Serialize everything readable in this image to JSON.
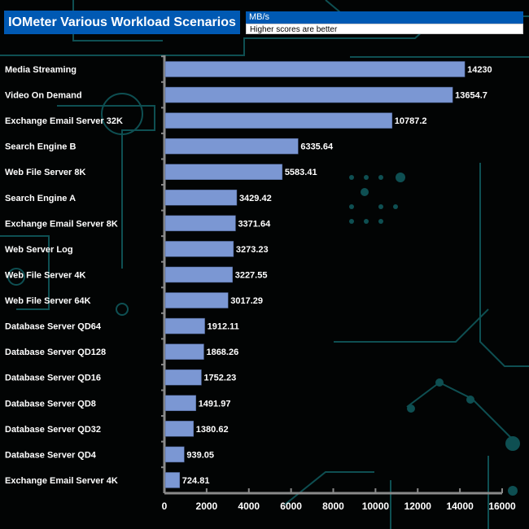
{
  "header": {
    "title": "IOMeter Various Workload Scenarios",
    "unit": "MB/s",
    "note": "Higher scores are better"
  },
  "colors": {
    "bar": "#7b97d3",
    "title_bg": "#0059b3",
    "axis": "#8a8a8a",
    "circuit": "#0e4f52"
  },
  "chart_data": {
    "type": "bar",
    "orientation": "horizontal",
    "title": "IOMeter Various Workload Scenarios",
    "xlabel": "MB/s",
    "categories": [
      "Media Streaming",
      "Video On Demand",
      "Exchange Email Server 32K",
      "Search Engine B",
      "Web File Server 8K",
      "Search Engine A",
      "Exchange Email Server 8K",
      "Web Server Log",
      "Web File Server 4K",
      "Web File Server 64K",
      "Database Server QD64",
      "Database Server QD128",
      "Database Server QD16",
      "Database Server QD8",
      "Database Server QD32",
      "Database Server QD4",
      "Exchange Email Server 4K"
    ],
    "values": [
      14230,
      13654.7,
      10787.2,
      6335.64,
      5583.41,
      3429.42,
      3371.64,
      3273.23,
      3227.55,
      3017.29,
      1912.11,
      1868.26,
      1752.23,
      1491.97,
      1380.62,
      939.05,
      724.81
    ],
    "value_labels": [
      "14230",
      "13654.7",
      "10787.2",
      "6335.64",
      "5583.41",
      "3429.42",
      "3371.64",
      "3273.23",
      "3227.55",
      "3017.29",
      "1912.11",
      "1868.26",
      "1752.23",
      "1491.97",
      "1380.62",
      "939.05",
      "724.81"
    ],
    "xlim": [
      0,
      16000
    ],
    "xticks": [
      "0",
      "2000",
      "4000",
      "6000",
      "8000",
      "10000",
      "12000",
      "14000",
      "16000"
    ],
    "grid": false,
    "legend": "none"
  }
}
